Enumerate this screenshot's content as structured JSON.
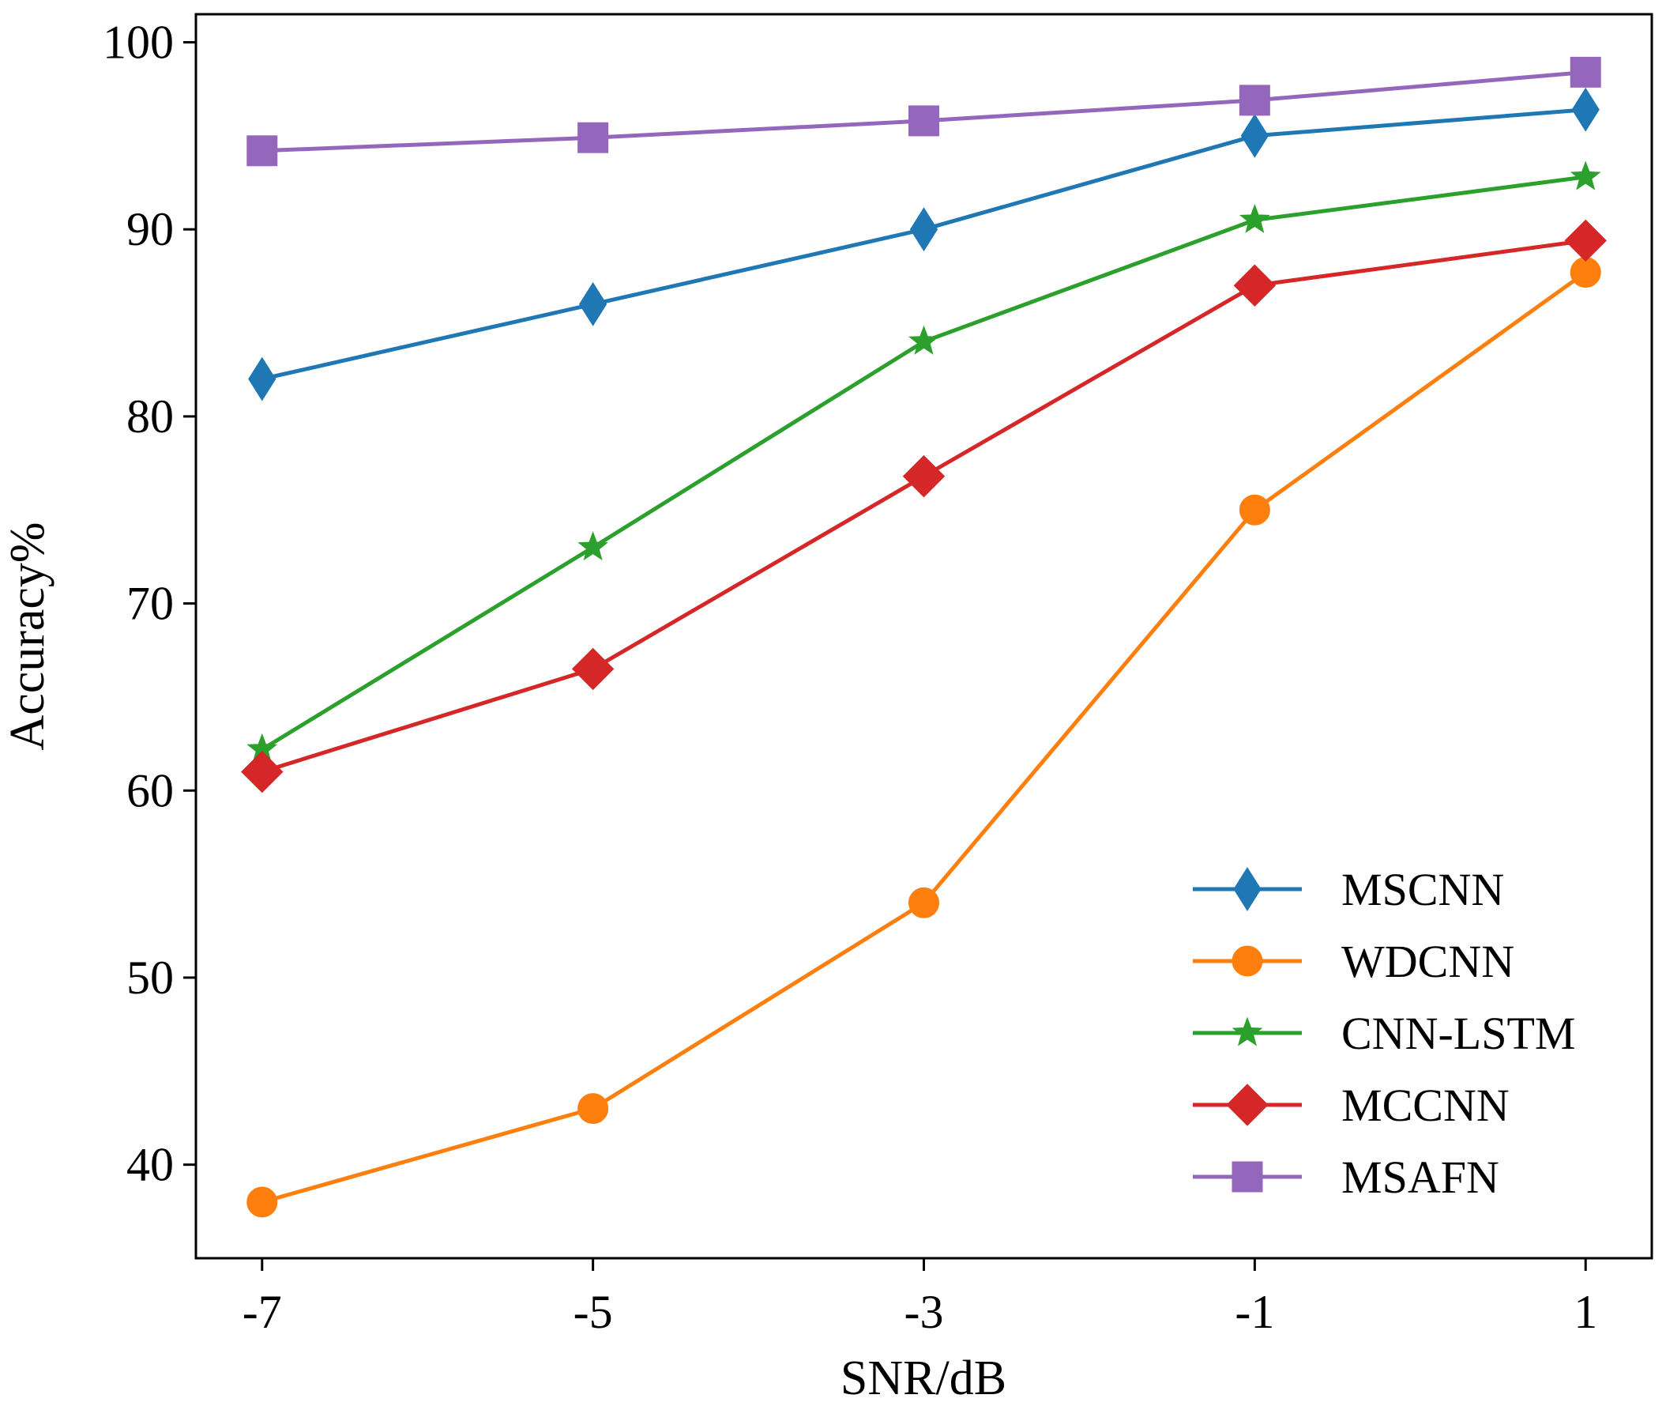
{
  "chart_data": {
    "type": "line",
    "title": "",
    "xlabel": "SNR/dB",
    "ylabel": "Accuracy%",
    "x": [
      -7,
      -5,
      -3,
      -1,
      1
    ],
    "x_tick_labels": [
      "-7",
      "-5",
      "-3",
      "-1",
      "1"
    ],
    "xlim": [
      -7.4,
      1.4
    ],
    "ylim": [
      35,
      101.5
    ],
    "y_ticks": [
      40,
      50,
      60,
      70,
      80,
      90,
      100
    ],
    "y_tick_labels": [
      "40",
      "50",
      "60",
      "70",
      "80",
      "90",
      "100"
    ],
    "grid": false,
    "legend_position": "bottom-right",
    "series": [
      {
        "name": "MSCNN",
        "color": "#1f77b4",
        "marker": "thin_diamond",
        "values": [
          82.0,
          86.0,
          90.0,
          95.0,
          96.4
        ]
      },
      {
        "name": "WDCNN",
        "color": "#ff7f0e",
        "marker": "circle",
        "values": [
          38.0,
          43.0,
          54.0,
          75.0,
          87.7
        ]
      },
      {
        "name": "CNN-LSTM",
        "color": "#2ca02c",
        "marker": "star",
        "values": [
          62.2,
          73.0,
          84.0,
          90.5,
          92.8
        ]
      },
      {
        "name": "MCCNN",
        "color": "#d62728",
        "marker": "diamond",
        "values": [
          61.0,
          66.5,
          76.8,
          87.0,
          89.4
        ]
      },
      {
        "name": "MSAFN",
        "color": "#9467bd",
        "marker": "square",
        "values": [
          94.2,
          94.9,
          95.8,
          96.9,
          98.4
        ]
      }
    ]
  }
}
